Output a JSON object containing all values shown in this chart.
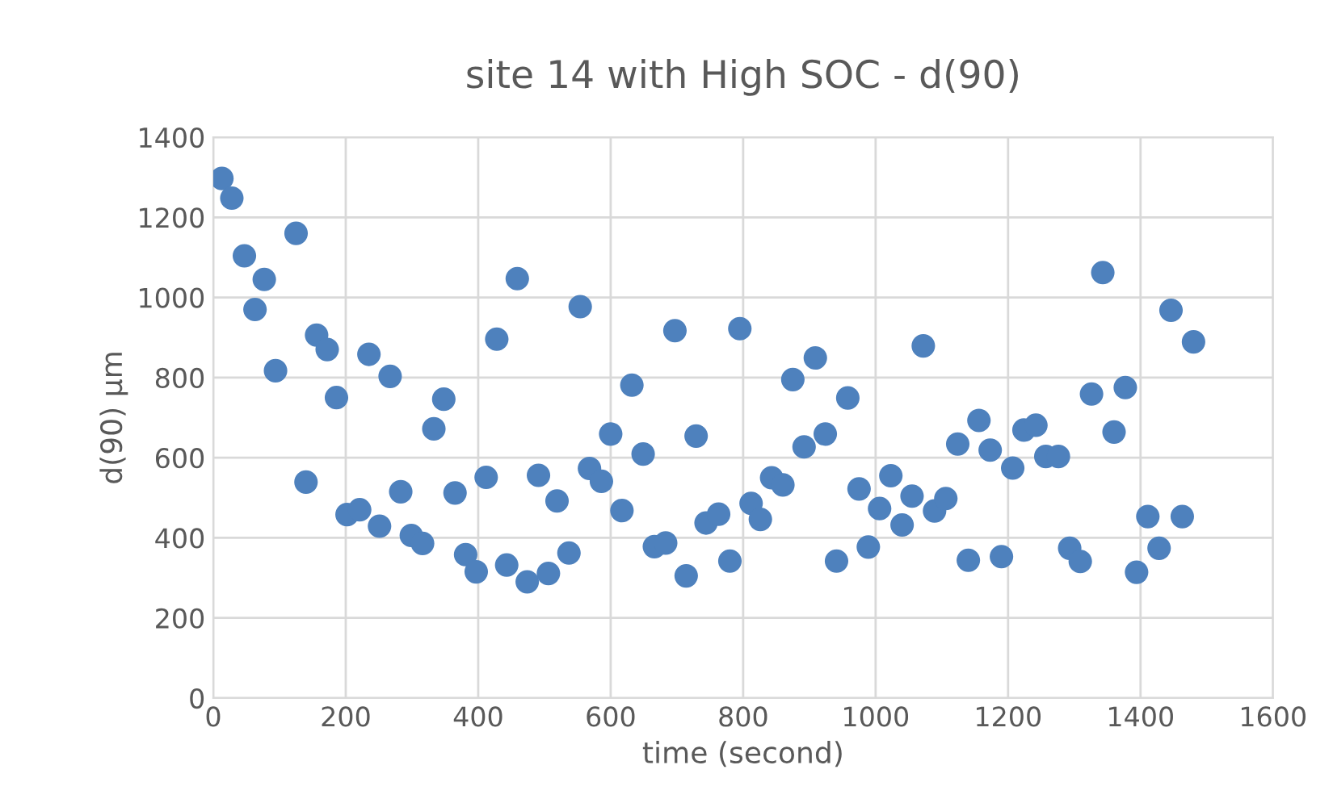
{
  "chart_data": {
    "type": "scatter",
    "title": "site 14 with High SOC - d(90)",
    "xlabel": "time (second)",
    "ylabel": "d(90) µm",
    "xlim": [
      0,
      1600
    ],
    "xticks": [
      0,
      200,
      400,
      600,
      800,
      1000,
      1200,
      1400,
      1600
    ],
    "ylim": [
      0,
      1400
    ],
    "yticks": [
      0,
      200,
      400,
      600,
      800,
      1000,
      1200,
      1400
    ],
    "grid": true,
    "marker": "circle",
    "legend": false,
    "series": [
      {
        "color": "#4e81bd",
        "x": [
          13,
          28,
          47,
          63,
          77,
          94,
          125,
          140,
          156,
          172,
          186,
          202,
          221,
          235,
          251,
          267,
          283,
          299,
          316,
          333,
          348,
          365,
          381,
          397,
          412,
          428,
          443,
          459,
          474,
          491,
          506,
          519,
          537,
          554,
          568,
          586,
          600,
          617,
          632,
          649,
          666,
          683,
          697,
          714,
          729,
          744,
          763,
          780,
          795,
          812,
          826,
          843,
          860,
          875,
          892,
          909,
          924,
          941,
          958,
          975,
          989,
          1006,
          1023,
          1040,
          1055,
          1072,
          1089,
          1106,
          1124,
          1140,
          1156,
          1173,
          1190,
          1207,
          1224,
          1242,
          1257,
          1276,
          1293,
          1309,
          1326,
          1343,
          1360,
          1377,
          1394,
          1411,
          1428,
          1446,
          1463,
          1480
        ],
        "values": [
          1297,
          1248,
          1104,
          970,
          1045,
          817,
          1160,
          539,
          906,
          870,
          750,
          458,
          470,
          858,
          429,
          803,
          515,
          406,
          386,
          672,
          746,
          512,
          358,
          315,
          551,
          896,
          332,
          1047,
          290,
          556,
          311,
          492,
          362,
          977,
          573,
          541,
          659,
          468,
          781,
          609,
          378,
          387,
          917,
          305,
          654,
          437,
          459,
          342,
          922,
          486,
          446,
          550,
          532,
          795,
          627,
          849,
          659,
          342,
          749,
          522,
          377,
          473,
          555,
          432,
          504,
          879,
          467,
          498,
          634,
          344,
          693,
          619,
          353,
          574,
          669,
          681,
          603,
          603,
          374,
          341,
          759,
          1062,
          664,
          775,
          314,
          453,
          374,
          968,
          453,
          889
        ]
      }
    ]
  }
}
